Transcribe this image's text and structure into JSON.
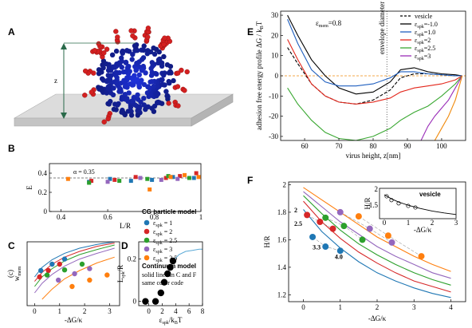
{
  "panel_labels": {
    "A": "A",
    "B": "B",
    "C": "C",
    "D": "D",
    "E": "E",
    "F": "F"
  },
  "panel_a": {
    "z_label": "z"
  },
  "colors": {
    "c1": "#1f77b4",
    "c2": "#d62728",
    "c25": "#2ca02c",
    "c3": "#9467bd",
    "c35": "#ff7f0e",
    "black": "#000000",
    "blue": "#1f5fbf",
    "red": "#e3261b",
    "green": "#3aa832",
    "purple": "#9a2db8",
    "orange": "#f08a0c",
    "vesicle_bead": "#2a3cc8",
    "spike_bead": "#d42020"
  },
  "cg_legend": {
    "title": "CG particle model",
    "items": [
      {
        "label": "ε",
        "sub": "spk",
        "value": " = 1",
        "color": "#1f77b4"
      },
      {
        "label": "ε",
        "sub": "spk",
        "value": " = 2",
        "color": "#d62728"
      },
      {
        "label": "ε",
        "sub": "spk",
        "value": " = 2.5",
        "color": "#2ca02c"
      },
      {
        "label": "ε",
        "sub": "spk",
        "value": " = 3",
        "color": "#9467bd"
      },
      {
        "label": "ε",
        "sub": "spk",
        "value": " = 3.5",
        "color": "#ff7f0e"
      }
    ],
    "continuum_title": "Continuum model",
    "continuum_line1": "solid lines in C and F",
    "continuum_line2": "same color code"
  },
  "chart_data": [
    {
      "id": "B",
      "type": "scatter",
      "xlabel": "L/R",
      "ylabel": "E",
      "xlim": [
        0.35,
        1.0
      ],
      "ylim": [
        0.0,
        0.5
      ],
      "xticks": [
        0.4,
        0.6,
        0.8,
        1
      ],
      "yticks": [
        0,
        0.2,
        0.4
      ],
      "reference_line": {
        "y": 0.35,
        "label": "α = 0.35"
      },
      "series": [
        {
          "key": "c1",
          "points": [
            [
              0.52,
              0.31
            ],
            [
              0.61,
              0.34
            ],
            [
              0.7,
              0.32
            ],
            [
              0.79,
              0.33
            ],
            [
              0.88,
              0.36
            ],
            [
              0.97,
              0.35
            ]
          ]
        },
        {
          "key": "c2",
          "points": [
            [
              0.53,
              0.32
            ],
            [
              0.63,
              0.33
            ],
            [
              0.72,
              0.36
            ],
            [
              0.85,
              0.35
            ],
            [
              0.91,
              0.37
            ],
            [
              0.98,
              0.4
            ]
          ]
        },
        {
          "key": "c25",
          "points": [
            [
              0.52,
              0.3
            ],
            [
              0.65,
              0.32
            ],
            [
              0.77,
              0.34
            ],
            [
              0.86,
              0.37
            ],
            [
              0.95,
              0.35
            ]
          ]
        },
        {
          "key": "c3",
          "points": [
            [
              0.6,
              0.31
            ],
            [
              0.74,
              0.35
            ],
            [
              0.83,
              0.33
            ],
            [
              0.9,
              0.34
            ]
          ]
        },
        {
          "key": "c35",
          "points": [
            [
              0.43,
              0.34
            ],
            [
              0.78,
              0.23
            ],
            [
              0.87,
              0.36
            ],
            [
              0.93,
              0.38
            ],
            [
              0.99,
              0.36
            ]
          ]
        }
      ]
    },
    {
      "id": "C",
      "type": "line",
      "xlabel": "-ΔG/κ",
      "ylabel": "w",
      "ylabel_sub": "mem",
      "ylabel_sup": "(c)",
      "xlim": [
        -0.3,
        3.4
      ],
      "ylim": [
        0,
        1.0
      ],
      "xticks": [
        0,
        1,
        2,
        3
      ],
      "curves": [
        {
          "key": "c1",
          "x": [
            0,
            0.3,
            0.7,
            1.2,
            1.8,
            2.5,
            3.2
          ],
          "y": [
            0.45,
            0.6,
            0.72,
            0.82,
            0.9,
            0.96,
            1.0
          ]
        },
        {
          "key": "c2",
          "x": [
            0,
            0.3,
            0.7,
            1.2,
            1.8,
            2.5,
            3.2
          ],
          "y": [
            0.38,
            0.52,
            0.65,
            0.76,
            0.85,
            0.93,
            0.98
          ]
        },
        {
          "key": "c25",
          "x": [
            0,
            0.3,
            0.7,
            1.2,
            1.8,
            2.5,
            3.2
          ],
          "y": [
            0.3,
            0.45,
            0.58,
            0.7,
            0.8,
            0.88,
            0.95
          ]
        },
        {
          "key": "c3",
          "x": [
            0,
            0.3,
            0.7,
            1.2,
            1.8,
            2.5,
            3.2
          ],
          "y": [
            0.2,
            0.35,
            0.49,
            0.62,
            0.73,
            0.82,
            0.9
          ]
        },
        {
          "key": "c35",
          "x": [
            0.3,
            0.7,
            1.2,
            1.8,
            2.5,
            3.2
          ],
          "y": [
            0.1,
            0.26,
            0.42,
            0.55,
            0.67,
            0.76
          ]
        }
      ],
      "points": [
        {
          "key": "c1",
          "xy": [
            [
              0.25,
              0.55
            ],
            [
              0.7,
              0.65
            ],
            [
              1.2,
              0.73
            ]
          ]
        },
        {
          "key": "c2",
          "xy": [
            [
              0.2,
              0.45
            ],
            [
              0.55,
              0.55
            ],
            [
              1.0,
              0.65
            ]
          ]
        },
        {
          "key": "c25",
          "xy": [
            [
              0.5,
              0.48
            ],
            [
              1.2,
              0.56
            ],
            [
              1.9,
              0.65
            ]
          ]
        },
        {
          "key": "c3",
          "xy": [
            [
              0.95,
              0.4
            ],
            [
              1.6,
              0.5
            ],
            [
              2.2,
              0.58
            ]
          ]
        },
        {
          "key": "c35",
          "xy": [
            [
              1.5,
              0.3
            ],
            [
              2.2,
              0.4
            ],
            [
              2.9,
              0.48
            ]
          ]
        }
      ]
    },
    {
      "id": "D",
      "type": "scatter",
      "xlabel": "ε",
      "xlabel_sub": "spk",
      "xlabel_tail": "/k",
      "xlabel_sub2": "B",
      "xlabel_tail2": "T",
      "ylabel": "L",
      "ylabel_sub": "spk",
      "ylabel_tail": "/R",
      "xlim": [
        -1.5,
        8
      ],
      "ylim": [
        -0.02,
        0.28
      ],
      "xticks": [
        0,
        2,
        4,
        6,
        8
      ],
      "yticks": [
        0,
        0.2
      ],
      "points": [
        [
          -0.5,
          0.0
        ],
        [
          1.0,
          0.0
        ],
        [
          1.8,
          0.04
        ],
        [
          2.3,
          0.09
        ],
        [
          2.8,
          0.13
        ],
        [
          3.2,
          0.16
        ],
        [
          3.6,
          0.19
        ]
      ],
      "curve": {
        "x": [
          3.6,
          4.5,
          5.5,
          6.5,
          7.5,
          8
        ],
        "y": [
          0.19,
          0.22,
          0.235,
          0.24,
          0.245,
          0.245
        ]
      }
    },
    {
      "id": "E",
      "type": "line",
      "annotation": "ε",
      "annotation_sub": "mem",
      "annotation_tail": "=0.8",
      "ylabel": "adhesion free energy profile  ΔG / k",
      "ylabel_sub": "B",
      "ylabel_tail": "T",
      "xlabel": "virus height, z[nm]",
      "xlim": [
        53,
        107
      ],
      "ylim": [
        -32,
        32
      ],
      "xticks": [
        60,
        70,
        80,
        90,
        100
      ],
      "yticks": [
        -30,
        -20,
        -10,
        0,
        10,
        20,
        30
      ],
      "vline": {
        "x": 84,
        "label": "envelope diameter"
      },
      "legend": [
        {
          "key": "vesicle",
          "label": "vesicle",
          "dashed": true
        },
        {
          "key": "c1",
          "label": "ε",
          "sub": "spk",
          "tail": "=-1.0"
        },
        {
          "key": "c1b",
          "label": "ε",
          "sub": "spk",
          "tail": "=1.0"
        },
        {
          "key": "c2",
          "label": "ε",
          "sub": "spk",
          "tail": "=2"
        },
        {
          "key": "c25",
          "label": "ε",
          "sub": "spk",
          "tail": "=2.5"
        },
        {
          "key": "c3",
          "label": "ε",
          "sub": "spk",
          "tail": "=3"
        }
      ],
      "curves": [
        {
          "key": "black",
          "x": [
            55,
            58,
            62,
            66,
            70,
            75,
            80,
            85,
            88,
            92,
            96,
            100,
            104,
            106
          ],
          "y": [
            30,
            20,
            8,
            0,
            -6,
            -9,
            -8,
            -3,
            3,
            4,
            2,
            1,
            0.5,
            0
          ]
        },
        {
          "key": "vesicle",
          "x": [
            55,
            58,
            62,
            66,
            70,
            75,
            80,
            85,
            88,
            92,
            96,
            100,
            104,
            106
          ],
          "y": [
            14,
            6,
            -4,
            -10,
            -13,
            -14,
            -12,
            -7,
            -1,
            1,
            1,
            0.5,
            0,
            0
          ],
          "dashed": true
        },
        {
          "key": "blue",
          "x": [
            55,
            58,
            62,
            66,
            70,
            75,
            80,
            85,
            88,
            92,
            96,
            100,
            104,
            106
          ],
          "y": [
            28,
            16,
            3,
            -3,
            -5,
            -5,
            -4,
            -1,
            2,
            2,
            1,
            0.5,
            0,
            0
          ]
        },
        {
          "key": "red",
          "x": [
            55,
            58,
            62,
            66,
            70,
            75,
            80,
            85,
            88,
            92,
            96,
            100,
            104,
            106
          ],
          "y": [
            18,
            8,
            -4,
            -10,
            -13,
            -14,
            -13,
            -11,
            -8,
            -6,
            -5,
            -4,
            -2,
            0
          ]
        },
        {
          "key": "green",
          "x": [
            55,
            58,
            62,
            66,
            70,
            75,
            80,
            85,
            88,
            92,
            96,
            100,
            104,
            106
          ],
          "y": [
            -6,
            -14,
            -22,
            -28,
            -31,
            -32,
            -30,
            -26,
            -22,
            -18,
            -15,
            -10,
            -4,
            0
          ]
        },
        {
          "key": "purple",
          "x": [
            94,
            96,
            98,
            100,
            102,
            104,
            106
          ],
          "y": [
            -32,
            -25,
            -20,
            -16,
            -12,
            -6,
            0
          ]
        },
        {
          "key": "orange",
          "x": [
            98,
            100,
            102,
            104,
            106
          ],
          "y": [
            -32,
            -26,
            -20,
            -12,
            0
          ]
        }
      ]
    },
    {
      "id": "F",
      "type": "line",
      "xlabel": "-ΔG/κ",
      "ylabel": "H/R",
      "xlim": [
        -0.4,
        4.4
      ],
      "ylim": [
        1.15,
        2.02
      ],
      "xticks": [
        0,
        1,
        2,
        3,
        4
      ],
      "yticks": [
        1.2,
        1.4,
        1.6,
        1.8,
        2
      ],
      "curve_labels": [
        {
          "text": "2",
          "x": -0.25,
          "y": 1.8
        },
        {
          "text": "2.5",
          "x": -0.25,
          "y": 1.7
        },
        {
          "text": "3.3",
          "x": 0.25,
          "y": 1.53
        },
        {
          "text": "4.0",
          "x": 0.85,
          "y": 1.46
        }
      ],
      "curves": [
        {
          "key": "c1",
          "x": [
            0,
            0.5,
            1,
            1.5,
            2,
            2.5,
            3,
            3.5,
            4
          ],
          "y": [
            1.82,
            1.66,
            1.54,
            1.44,
            1.36,
            1.3,
            1.25,
            1.21,
            1.18
          ]
        },
        {
          "key": "c2",
          "x": [
            0,
            0.5,
            1,
            1.5,
            2,
            2.5,
            3,
            3.5,
            4
          ],
          "y": [
            1.88,
            1.73,
            1.61,
            1.51,
            1.43,
            1.36,
            1.3,
            1.26,
            1.22
          ]
        },
        {
          "key": "c25",
          "x": [
            0,
            0.5,
            1,
            1.5,
            2,
            2.5,
            3,
            3.5,
            4
          ],
          "y": [
            1.92,
            1.79,
            1.67,
            1.57,
            1.49,
            1.42,
            1.36,
            1.31,
            1.27
          ]
        },
        {
          "key": "c3",
          "x": [
            0,
            0.5,
            1,
            1.5,
            2,
            2.5,
            3,
            3.5,
            4
          ],
          "y": [
            1.95,
            1.84,
            1.73,
            1.64,
            1.55,
            1.48,
            1.42,
            1.36,
            1.32
          ]
        },
        {
          "key": "c35",
          "x": [
            0,
            0.5,
            1,
            1.5,
            2,
            2.5,
            3,
            3.5,
            4
          ],
          "y": [
            1.98,
            1.89,
            1.8,
            1.71,
            1.62,
            1.55,
            1.48,
            1.42,
            1.37
          ]
        }
      ],
      "points": [
        {
          "key": "c1",
          "xy": [
            [
              0.25,
              1.62
            ],
            [
              0.6,
              1.55
            ],
            [
              1.0,
              1.52
            ]
          ]
        },
        {
          "key": "c2",
          "xy": [
            [
              0.1,
              1.78
            ],
            [
              0.45,
              1.73
            ],
            [
              0.8,
              1.68
            ]
          ]
        },
        {
          "key": "c25",
          "xy": [
            [
              0.6,
              1.76
            ],
            [
              1.1,
              1.7
            ],
            [
              1.6,
              1.6
            ]
          ]
        },
        {
          "key": "c3",
          "xy": [
            [
              1.0,
              1.8
            ],
            [
              1.8,
              1.68
            ],
            [
              2.4,
              1.58
            ]
          ]
        },
        {
          "key": "c35",
          "xy": [
            [
              1.5,
              1.77
            ],
            [
              2.3,
              1.63
            ],
            [
              3.2,
              1.48
            ]
          ]
        }
      ],
      "inset": {
        "title": "vesicle",
        "xlabel": "-ΔG/κ",
        "ylabel": "H/R",
        "xlim": [
          -0.2,
          3
        ],
        "ylim": [
          1.1,
          2.05
        ],
        "xticks": [
          0,
          1,
          2,
          3
        ],
        "yticks": [
          1.5,
          2
        ],
        "curve": {
          "x": [
            0,
            0.3,
            0.6,
            1,
            1.5,
            2,
            2.5,
            3
          ],
          "y": [
            1.85,
            1.72,
            1.62,
            1.52,
            1.42,
            1.34,
            1.28,
            1.23
          ]
        },
        "points": [
          [
            0.1,
            1.8
          ],
          [
            0.3,
            1.68
          ],
          [
            0.6,
            1.58
          ],
          [
            1.0,
            1.5
          ],
          [
            1.3,
            1.45
          ]
        ]
      }
    }
  ]
}
